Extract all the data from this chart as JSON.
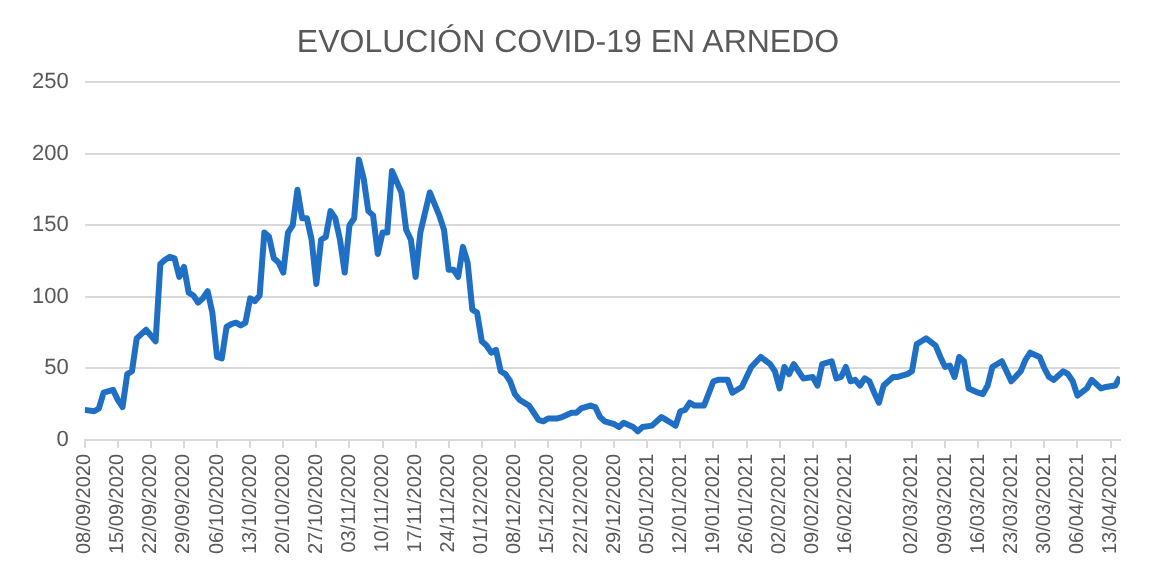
{
  "chart_data": {
    "type": "line",
    "title": "EVOLUCIÓN COVID-19 EN ARNEDO",
    "x": [
      "2020-09-08",
      "2020-09-10",
      "2020-09-11",
      "2020-09-12",
      "2020-09-14",
      "2020-09-15",
      "2020-09-16",
      "2020-09-17",
      "2020-09-18",
      "2020-09-19",
      "2020-09-20",
      "2020-09-21",
      "2020-09-22",
      "2020-09-23",
      "2020-09-24",
      "2020-09-25",
      "2020-09-26",
      "2020-09-27",
      "2020-09-28",
      "2020-09-29",
      "2020-09-30",
      "2020-10-01",
      "2020-10-02",
      "2020-10-03",
      "2020-10-04",
      "2020-10-05",
      "2020-10-06",
      "2020-10-07",
      "2020-10-08",
      "2020-10-09",
      "2020-10-10",
      "2020-10-11",
      "2020-10-12",
      "2020-10-13",
      "2020-10-14",
      "2020-10-15",
      "2020-10-16",
      "2020-10-17",
      "2020-10-18",
      "2020-10-19",
      "2020-10-20",
      "2020-10-21",
      "2020-10-22",
      "2020-10-23",
      "2020-10-24",
      "2020-10-25",
      "2020-10-26",
      "2020-10-27",
      "2020-10-28",
      "2020-10-29",
      "2020-10-30",
      "2020-10-31",
      "2020-11-01",
      "2020-11-02",
      "2020-11-03",
      "2020-11-04",
      "2020-11-05",
      "2020-11-06",
      "2020-11-07",
      "2020-11-08",
      "2020-11-09",
      "2020-11-10",
      "2020-11-11",
      "2020-11-12",
      "2020-11-14",
      "2020-11-15",
      "2020-11-16",
      "2020-11-17",
      "2020-11-18",
      "2020-11-20",
      "2020-11-21",
      "2020-11-22",
      "2020-11-23",
      "2020-11-24",
      "2020-11-25",
      "2020-11-26",
      "2020-11-27",
      "2020-11-28",
      "2020-11-29",
      "2020-11-30",
      "2020-12-01",
      "2020-12-02",
      "2020-12-03",
      "2020-12-04",
      "2020-12-05",
      "2020-12-06",
      "2020-12-07",
      "2020-12-08",
      "2020-12-09",
      "2020-12-10",
      "2020-12-11",
      "2020-12-12",
      "2020-12-13",
      "2020-12-14",
      "2020-12-15",
      "2020-12-17",
      "2020-12-18",
      "2020-12-20",
      "2020-12-21",
      "2020-12-22",
      "2020-12-24",
      "2020-12-25",
      "2020-12-26",
      "2020-12-27",
      "2020-12-29",
      "2020-12-30",
      "2020-12-31",
      "2021-01-02",
      "2021-01-03",
      "2021-01-04",
      "2021-01-06",
      "2021-01-08",
      "2021-01-09",
      "2021-01-10",
      "2021-01-11",
      "2021-01-12",
      "2021-01-13",
      "2021-01-14",
      "2021-01-15",
      "2021-01-16",
      "2021-01-17",
      "2021-01-19",
      "2021-01-20",
      "2021-01-22",
      "2021-01-23",
      "2021-01-25",
      "2021-01-27",
      "2021-01-29",
      "2021-01-31",
      "2021-02-01",
      "2021-02-02",
      "2021-02-03",
      "2021-02-04",
      "2021-02-05",
      "2021-02-06",
      "2021-02-07",
      "2021-02-09",
      "2021-02-10",
      "2021-02-11",
      "2021-02-13",
      "2021-02-14",
      "2021-02-15",
      "2021-02-16",
      "2021-02-17",
      "2021-02-18",
      "2021-02-19",
      "2021-02-20",
      "2021-02-21",
      "2021-02-22",
      "2021-02-23",
      "2021-02-24",
      "2021-02-26",
      "2021-02-27",
      "2021-03-01",
      "2021-03-02",
      "2021-03-03",
      "2021-03-04",
      "2021-03-05",
      "2021-03-07",
      "2021-03-08",
      "2021-03-09",
      "2021-03-10",
      "2021-03-11",
      "2021-03-12",
      "2021-03-13",
      "2021-03-14",
      "2021-03-16",
      "2021-03-17",
      "2021-03-18",
      "2021-03-19",
      "2021-03-21",
      "2021-03-22",
      "2021-03-23",
      "2021-03-25",
      "2021-03-26",
      "2021-03-27",
      "2021-03-29",
      "2021-03-30",
      "2021-03-31",
      "2021-04-01",
      "2021-04-03",
      "2021-04-04",
      "2021-04-05",
      "2021-04-06",
      "2021-04-08",
      "2021-04-09",
      "2021-04-11",
      "2021-04-12",
      "2021-04-14",
      "2021-04-15"
    ],
    "values": [
      21,
      20,
      22,
      33,
      35,
      28,
      23,
      46,
      48,
      71,
      74,
      77,
      73,
      69,
      123,
      126,
      128,
      127,
      114,
      121,
      103,
      101,
      96,
      99,
      104,
      89,
      58,
      57,
      79,
      81,
      82,
      80,
      82,
      99,
      97,
      101,
      145,
      142,
      127,
      124,
      117,
      145,
      150,
      175,
      155,
      155,
      140,
      109,
      140,
      142,
      160,
      155,
      140,
      117,
      150,
      155,
      196,
      183,
      160,
      157,
      130,
      145,
      145,
      188,
      173,
      147,
      140,
      114,
      145,
      173,
      165,
      157,
      147,
      119,
      119,
      114,
      135,
      124,
      91,
      89,
      69,
      66,
      61,
      63,
      48,
      46,
      41,
      32,
      28,
      26,
      24,
      19,
      14,
      13,
      15,
      15,
      16,
      19,
      19,
      22,
      24,
      23,
      16,
      13,
      11,
      9,
      12,
      9,
      6,
      9,
      10,
      16,
      14,
      12,
      10,
      20,
      21,
      26,
      24,
      24,
      24,
      41,
      42,
      42,
      33,
      37,
      51,
      58,
      53,
      48,
      36,
      51,
      46,
      53,
      48,
      43,
      44,
      38,
      53,
      55,
      43,
      44,
      51,
      41,
      42,
      38,
      43,
      41,
      33,
      26,
      38,
      44,
      44,
      46,
      48,
      67,
      69,
      71,
      66,
      58,
      51,
      52,
      44,
      58,
      55,
      36,
      33,
      32,
      38,
      51,
      55,
      48,
      41,
      48,
      56,
      61,
      58,
      50,
      44,
      42,
      48,
      46,
      41,
      31,
      36,
      42,
      36,
      37,
      38,
      44
    ],
    "color": "#1f6fc5",
    "xlim": [
      "2020-09-08",
      "2021-04-15"
    ],
    "xticks": [
      {
        "value": "2020-09-08",
        "label": "08/09/2020"
      },
      {
        "value": "2020-09-15",
        "label": "15/09/2020"
      },
      {
        "value": "2020-09-22",
        "label": "22/09/2020"
      },
      {
        "value": "2020-09-29",
        "label": "29/09/2020"
      },
      {
        "value": "2020-10-06",
        "label": "06/10/2020"
      },
      {
        "value": "2020-10-13",
        "label": "13/10/2020"
      },
      {
        "value": "2020-10-20",
        "label": "20/10/2020"
      },
      {
        "value": "2020-10-27",
        "label": "27/10/2020"
      },
      {
        "value": "2020-11-03",
        "label": "03/11/2020"
      },
      {
        "value": "2020-11-10",
        "label": "10/11/2020"
      },
      {
        "value": "2020-11-17",
        "label": "17/11/2020"
      },
      {
        "value": "2020-11-24",
        "label": "24/11/2020"
      },
      {
        "value": "2020-12-01",
        "label": "01/12/2020"
      },
      {
        "value": "2020-12-08",
        "label": "08/12/2020"
      },
      {
        "value": "2020-12-15",
        "label": "15/12/2020"
      },
      {
        "value": "2020-12-22",
        "label": "22/12/2020"
      },
      {
        "value": "2020-12-29",
        "label": "29/12/2020"
      },
      {
        "value": "2021-01-05",
        "label": "05/01/2021"
      },
      {
        "value": "2021-01-12",
        "label": "12/01/2021"
      },
      {
        "value": "2021-01-19",
        "label": "19/01/2021"
      },
      {
        "value": "2021-01-26",
        "label": "26/01/2021"
      },
      {
        "value": "2021-02-02",
        "label": "02/02/2021"
      },
      {
        "value": "2021-02-09",
        "label": "09/02/2021"
      },
      {
        "value": "2021-02-16",
        "label": "16/02/2021"
      },
      {
        "value": "2021-03-02",
        "label": "02/03/2021"
      },
      {
        "value": "2021-03-09",
        "label": "09/03/2021"
      },
      {
        "value": "2021-03-16",
        "label": "16/03/2021"
      },
      {
        "value": "2021-03-23",
        "label": "23/03/2021"
      },
      {
        "value": "2021-03-30",
        "label": "30/03/2021"
      },
      {
        "value": "2021-04-06",
        "label": "06/04/2021"
      },
      {
        "value": "2021-04-13",
        "label": "13/04/2021"
      }
    ],
    "ylim": [
      0,
      250
    ],
    "yticks": [
      0,
      50,
      100,
      150,
      200,
      250
    ],
    "grid": "y"
  }
}
